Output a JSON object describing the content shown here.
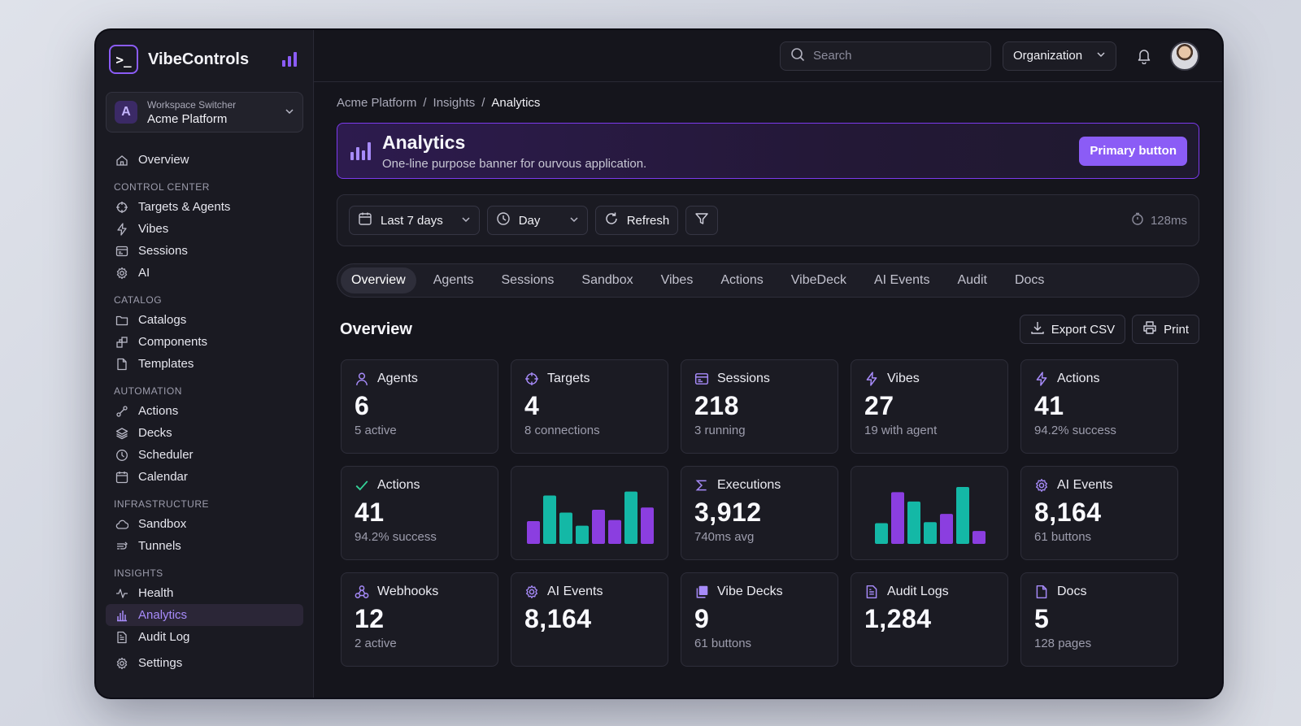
{
  "brand": {
    "name": "VibeControls",
    "logo_glyph": ">_"
  },
  "workspace": {
    "label": "Workspace Switcher",
    "name": "Acme Platform",
    "initial": "A"
  },
  "sidebar": {
    "top": [
      {
        "label": "Overview",
        "icon": "home-icon"
      }
    ],
    "sections": [
      {
        "title": "CONTROL CENTER",
        "items": [
          {
            "label": "Targets & Agents",
            "icon": "crosshair-icon"
          },
          {
            "label": "Vibes",
            "icon": "bolt-icon"
          },
          {
            "label": "Sessions",
            "icon": "window-icon"
          },
          {
            "label": "AI",
            "icon": "gear-icon"
          }
        ]
      },
      {
        "title": "CATALOG",
        "items": [
          {
            "label": "Catalogs",
            "icon": "folder-icon"
          },
          {
            "label": "Components",
            "icon": "puzzle-icon"
          },
          {
            "label": "Templates",
            "icon": "file-icon"
          }
        ]
      },
      {
        "title": "AUTOMATION",
        "items": [
          {
            "label": "Actions",
            "icon": "flow-icon"
          },
          {
            "label": "Decks",
            "icon": "layers-icon"
          },
          {
            "label": "Scheduler",
            "icon": "clock-icon"
          },
          {
            "label": "Calendar",
            "icon": "calendar-icon"
          }
        ]
      },
      {
        "title": "INFRASTRUCTURE",
        "items": [
          {
            "label": "Sandbox",
            "icon": "cloud-icon"
          },
          {
            "label": "Tunnels",
            "icon": "tunnel-icon"
          }
        ]
      },
      {
        "title": "INSIGHTS",
        "items": [
          {
            "label": "Health",
            "icon": "pulse-icon"
          },
          {
            "label": "Analytics",
            "icon": "bar-chart-icon",
            "active": true
          },
          {
            "label": "Audit Log",
            "icon": "document-icon"
          }
        ]
      }
    ],
    "bottom": [
      {
        "label": "Settings",
        "icon": "gear-icon"
      }
    ]
  },
  "topbar": {
    "search_placeholder": "Search",
    "org_label": "Organization"
  },
  "breadcrumb": {
    "items": [
      "Acme Platform",
      "Insights",
      "Analytics"
    ],
    "separator": "/"
  },
  "banner": {
    "title": "Analytics",
    "description": "One-line purpose banner for ourvous application.",
    "button": "Primary button"
  },
  "toolbar": {
    "range": "Last 7 days",
    "granularity": "Day",
    "refresh": "Refresh",
    "latency": "128ms"
  },
  "tabs": [
    "Overview",
    "Agents",
    "Sessions",
    "Sandbox",
    "Vibes",
    "Actions",
    "VibeDeck",
    "AI Events",
    "Audit",
    "Docs"
  ],
  "active_tab": "Overview",
  "overview": {
    "title": "Overview",
    "export": "Export CSV",
    "print": "Print"
  },
  "colors": {
    "accent": "#8b5cf6",
    "purple_bar": "#8b3ee0",
    "teal_bar": "#14b8a6",
    "bg": "#15151c"
  },
  "cards": [
    {
      "title": "Agents",
      "value": "6",
      "sub": "5 active",
      "icon": "user-icon"
    },
    {
      "title": "Targets",
      "value": "4",
      "sub": "8 connections",
      "icon": "crosshair-icon"
    },
    {
      "title": "Sessions",
      "value": "218",
      "sub": "3 running",
      "icon": "window-icon"
    },
    {
      "title": "Vibes",
      "value": "27",
      "sub": "19 with agent",
      "icon": "bolt-icon"
    },
    {
      "title": "Actions",
      "value": "41",
      "sub": "94.2% success",
      "icon": "bolt-icon"
    },
    {
      "title": "Actions",
      "value": "41",
      "sub": "94.2% success",
      "icon": "check-icon"
    },
    {
      "chart": true
    },
    {
      "title": "Executions",
      "value": "3,912",
      "sub": "740ms avg",
      "icon": "sigma-icon"
    },
    {
      "chart": true
    },
    {
      "title": "AI Events",
      "value": "8,164",
      "sub": "61 buttons",
      "icon": "gear-icon"
    },
    {
      "title": "Webhooks",
      "value": "12",
      "sub": "2 active",
      "icon": "webhook-icon"
    },
    {
      "title": "AI Events",
      "value": "8,164",
      "sub": "",
      "icon": "gear-icon"
    },
    {
      "title": "Vibe Decks",
      "value": "9",
      "sub": "61 buttons",
      "icon": "deck-icon"
    },
    {
      "title": "Audit Logs",
      "value": "1,284",
      "sub": "",
      "icon": "document-icon"
    },
    {
      "title": "Docs",
      "value": "5",
      "sub": "128 pages",
      "icon": "file-icon"
    }
  ],
  "chart_data": [
    {
      "type": "bar",
      "series": [
        {
          "color": "purple",
          "values": [
            0.35,
            0.68,
            0.6,
            0.48,
            0.58,
            0.7,
            0.62
          ]
        },
        {
          "color": "teal",
          "values": [
            0.7,
            0.42,
            0.25,
            0.28,
            0.9,
            0.58,
            0.4
          ]
        }
      ],
      "order": [
        "p",
        "t",
        "t",
        "t",
        "p",
        "t",
        "p",
        "t",
        "p"
      ]
    },
    {
      "type": "bar",
      "bars": [
        {
          "c": "teal",
          "v": 0.4
        },
        {
          "c": "purple",
          "v": 1.0
        },
        {
          "c": "teal",
          "v": 0.82
        },
        {
          "c": "teal",
          "v": 0.42
        },
        {
          "c": "purple",
          "v": 0.58
        },
        {
          "c": "teal",
          "v": 1.1
        },
        {
          "c": "purple",
          "v": 0.25
        }
      ]
    }
  ]
}
